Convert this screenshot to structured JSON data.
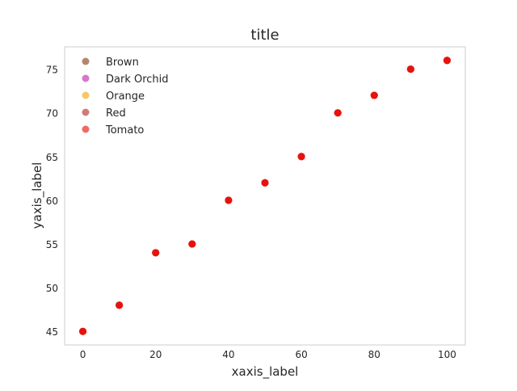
{
  "chart_data": {
    "type": "scatter",
    "title": "title",
    "xlabel": "xaxis_label",
    "ylabel": "yaxis_label",
    "xlim": [
      -5,
      105
    ],
    "ylim": [
      43.45,
      77.55
    ],
    "xticks": [
      0,
      20,
      40,
      60,
      80,
      100
    ],
    "yticks": [
      45,
      50,
      55,
      60,
      65,
      70,
      75
    ],
    "grid": false,
    "legend_position": "top-left",
    "series": [
      {
        "name": "Brown",
        "color": "#a0694b",
        "x": [
          0,
          10,
          20,
          30,
          40,
          50,
          60,
          70,
          80,
          90,
          100
        ],
        "y": [
          45,
          48,
          54,
          55,
          60,
          62,
          65,
          70,
          72,
          75,
          76
        ]
      },
      {
        "name": "Dark Orchid",
        "color": "#cc55bb",
        "x": [
          0,
          10,
          20,
          30,
          40,
          50,
          60,
          70,
          80,
          90,
          100
        ],
        "y": [
          45,
          48,
          54,
          55,
          60,
          62,
          65,
          70,
          72,
          75,
          76
        ]
      },
      {
        "name": "Orange",
        "color": "#f5b942",
        "x": [
          0,
          10,
          20,
          30,
          40,
          50,
          60,
          70,
          80,
          90,
          100
        ],
        "y": [
          45,
          48,
          54,
          55,
          60,
          62,
          65,
          70,
          72,
          75,
          76
        ]
      },
      {
        "name": "Red",
        "color": "#c45a5a",
        "x": [
          0,
          10,
          20,
          30,
          40,
          50,
          60,
          70,
          80,
          90,
          100
        ],
        "y": [
          45,
          48,
          54,
          55,
          60,
          62,
          65,
          70,
          72,
          75,
          76
        ]
      },
      {
        "name": "Tomato",
        "color": "#ee4444",
        "x": [
          0,
          10,
          20,
          30,
          40,
          50,
          60,
          70,
          80,
          90,
          100
        ],
        "y": [
          45,
          48,
          54,
          55,
          60,
          62,
          65,
          70,
          72,
          75,
          76
        ]
      }
    ],
    "overplot_color": "#e8120c"
  }
}
